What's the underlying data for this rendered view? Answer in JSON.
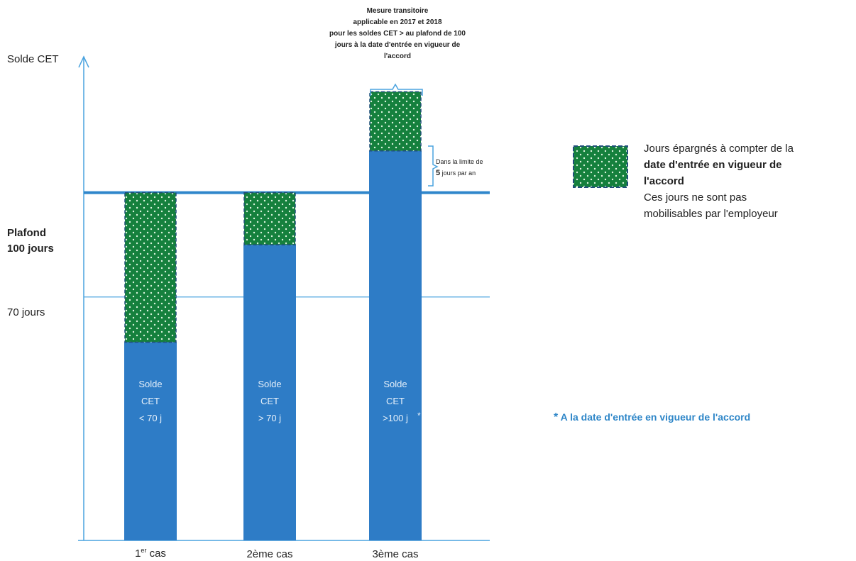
{
  "chart_data": {
    "type": "bar",
    "ylabel": "Solde CET",
    "y_reference_lines": [
      {
        "name": "Plafond",
        "label_line1": "Plafond",
        "label_line2": "100 jours",
        "value": 100
      },
      {
        "name": "70 jours",
        "label": "70 jours",
        "value": 70
      }
    ],
    "ylim": [
      0,
      135
    ],
    "categories": [
      {
        "main": "1",
        "sup": "er",
        "rest": " cas"
      },
      {
        "main": "2ème cas",
        "sup": "",
        "rest": ""
      },
      {
        "main": "3ème cas",
        "sup": "",
        "rest": ""
      }
    ],
    "series": [
      {
        "name": "Solde CET",
        "values": [
          57,
          85,
          112
        ],
        "color": "#2e7cc6"
      },
      {
        "name": "Jours épargnés à compter de la date d'entrée en vigueur de l'accord",
        "values": [
          43,
          15,
          17
        ],
        "color": "#15803d"
      }
    ],
    "bar_labels": [
      [
        "Solde",
        "CET",
        "< 70 j",
        ""
      ],
      [
        "Solde",
        "CET",
        "> 70 j",
        ""
      ],
      [
        "Solde",
        "CET",
        ">100 j",
        "*"
      ]
    ]
  },
  "annotations": {
    "transitional_measure": [
      "Mesure transitoire",
      "applicable  en 2017 et 2018",
      "pour les soldes CET > au plafond de 100",
      "jours à la date d'entrée en vigueur de",
      "l'accord"
    ],
    "limit_note_line1": "Dans la limite de",
    "limit_note_line2_big": "5",
    "limit_note_line2_rest": " jours par an"
  },
  "legend": {
    "line1": "Jours épargnés à compter de la",
    "line2_bold": "date d'entrée en vigueur de",
    "line3_bold": "l'accord",
    "line4": "Ces jours ne sont pas",
    "line5": "mobilisables par l'employeur"
  },
  "footnote": {
    "star": "*",
    "text": " A la date d'entrée en vigueur de l'accord"
  },
  "colors": {
    "blue": "#2e7cc6",
    "green": "#15803d",
    "axis": "#4aa3df",
    "ref_line": "#2f86cb",
    "note_text": "#2e86c8"
  }
}
